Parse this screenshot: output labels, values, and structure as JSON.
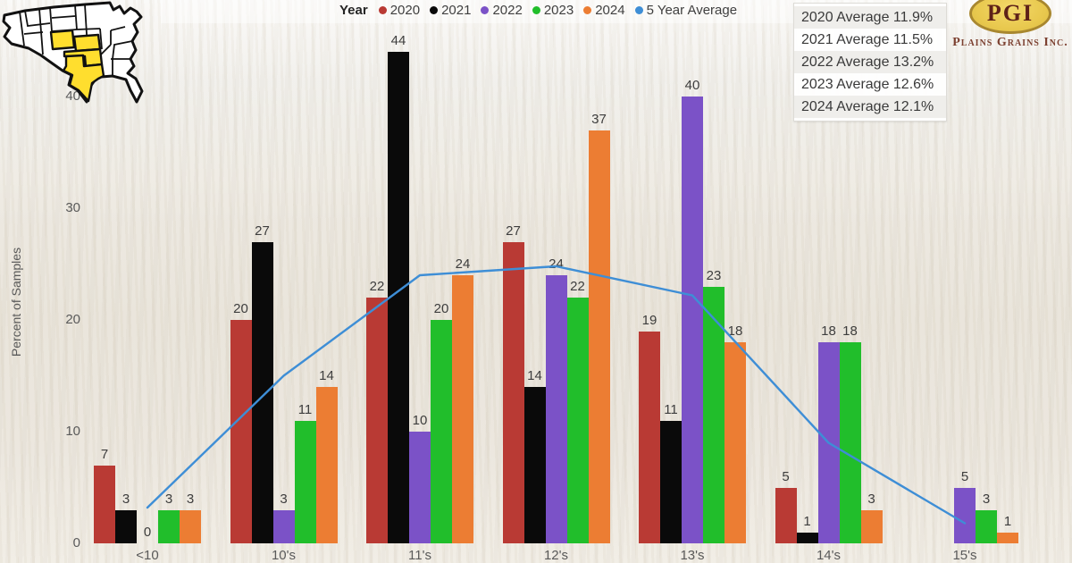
{
  "legend": {
    "title": "Year",
    "items": [
      {
        "label": "2020",
        "color": "#B93A34"
      },
      {
        "label": "2021",
        "color": "#0a0a0a"
      },
      {
        "label": "2022",
        "color": "#7B52C7"
      },
      {
        "label": "2023",
        "color": "#21BE2B"
      },
      {
        "label": "2024",
        "color": "#EC7D33"
      },
      {
        "label": "5 Year Average",
        "color": "#3E8ED6"
      }
    ]
  },
  "averages_panel": {
    "rows": [
      "2020 Average 11.9%",
      "2021 Average 11.5%",
      "2022 Average 13.2%",
      "2023 Average 12.6%",
      "2024 Average 12.1%"
    ]
  },
  "logo": {
    "acronym": "PGI",
    "company": "Plains Grains Inc.",
    "ellipse_color": "#E9C94F",
    "text_color": "#5E2118"
  },
  "map": {
    "description": "us-map-highlighted-states",
    "highlight_color": "#FFDE2E"
  },
  "chart_data": {
    "type": "bar",
    "title": "",
    "categories": [
      "<10",
      "10's",
      "11's",
      "12's",
      "13's",
      "14's",
      "15's"
    ],
    "series": [
      {
        "name": "2020",
        "color": "#B93A34",
        "values": [
          7,
          20,
          22,
          27,
          19,
          5,
          null
        ]
      },
      {
        "name": "2021",
        "color": "#0a0a0a",
        "values": [
          3,
          27,
          44,
          14,
          11,
          1,
          null
        ]
      },
      {
        "name": "2022",
        "color": "#7B52C7",
        "values": [
          0,
          3,
          10,
          24,
          40,
          18,
          5
        ]
      },
      {
        "name": "2023",
        "color": "#21BE2B",
        "values": [
          3,
          11,
          20,
          22,
          23,
          18,
          3
        ]
      },
      {
        "name": "2024",
        "color": "#EC7D33",
        "values": [
          3,
          14,
          24,
          37,
          18,
          3,
          1
        ]
      }
    ],
    "line_series": {
      "name": "5 Year Average",
      "color": "#3E8ED6",
      "values": [
        3.2,
        15,
        24,
        24.8,
        22.2,
        9,
        1.8
      ]
    },
    "xlabel": "",
    "ylabel": "Percent of Samples",
    "yticks": [
      0,
      10,
      20,
      30,
      40
    ],
    "ylim": [
      0,
      47
    ],
    "grid": false,
    "legend_position": "top",
    "data_labels": true
  }
}
